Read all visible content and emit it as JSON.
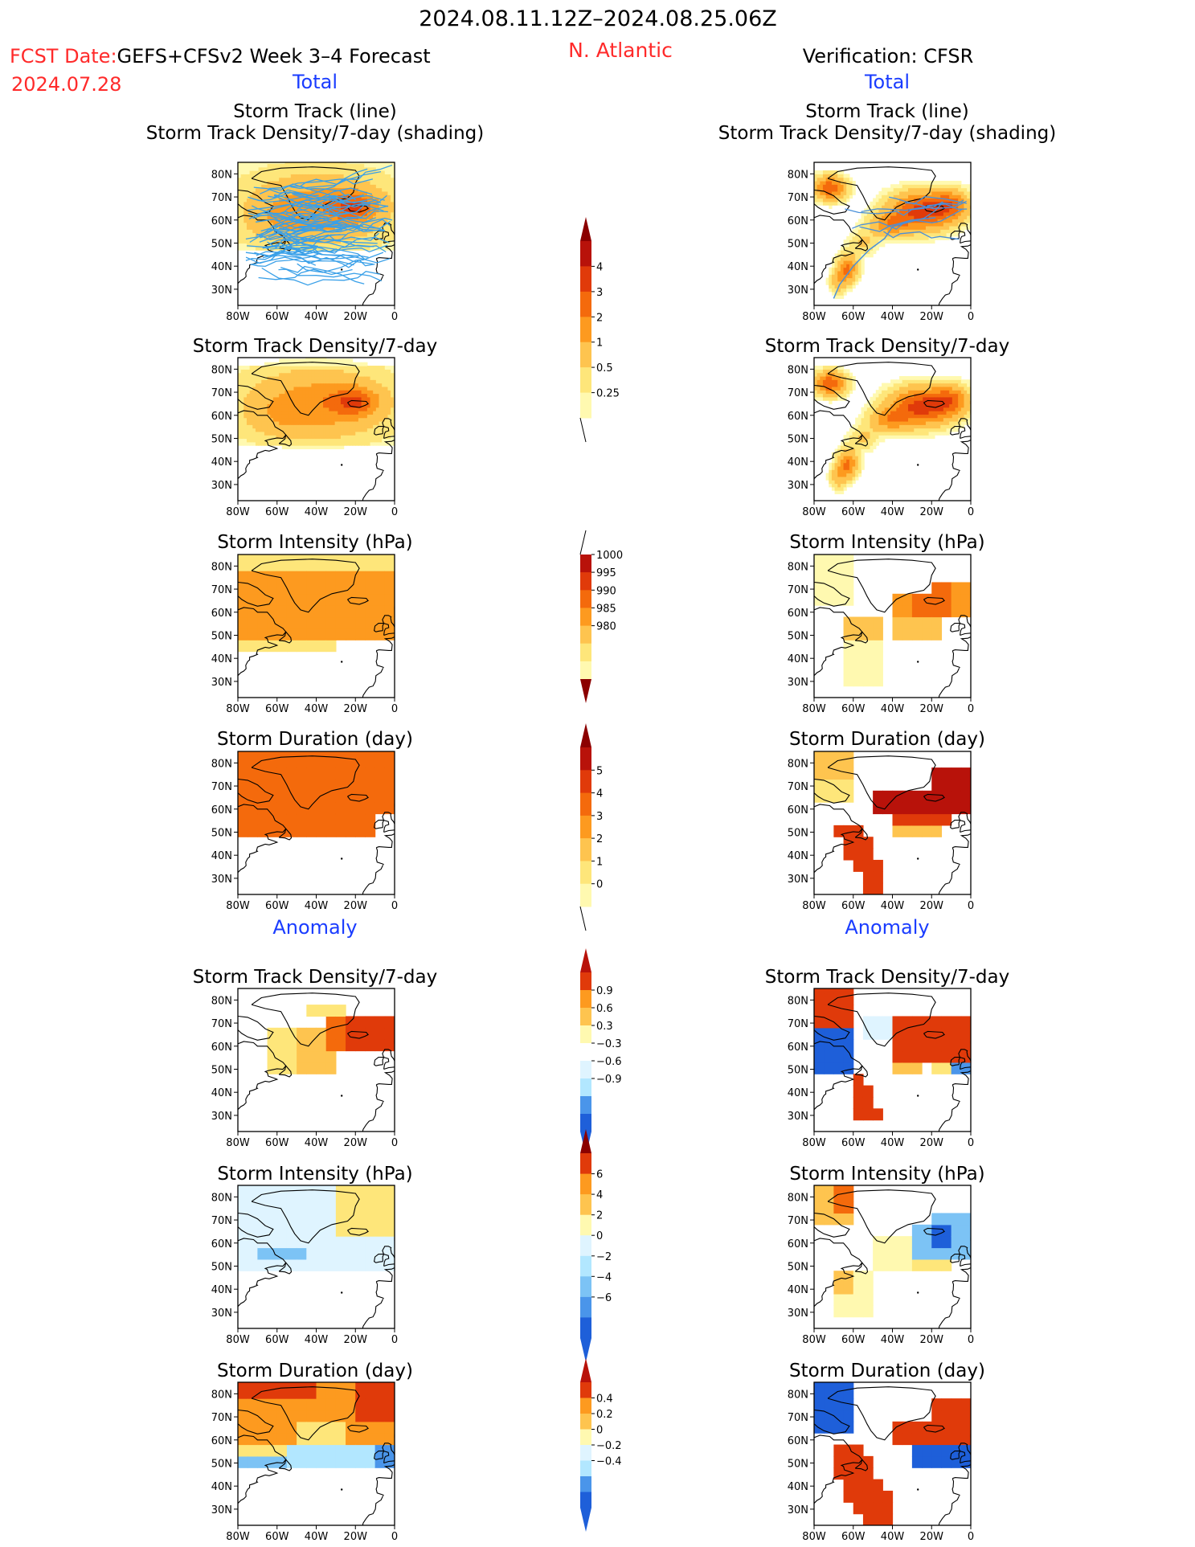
{
  "header": {
    "date_range": "2024.08.11.12Z–2024.08.25.06Z",
    "fcst_label": "FCST Date:",
    "fcst_model": "GEFS+CFSv2 Week 3–4 Forecast",
    "fcst_date": "2024.07.28",
    "region": "N. Atlantic",
    "verification": "Verification: CFSR",
    "total_left": "Total",
    "total_right": "Total",
    "anomaly_left": "Anomaly",
    "anomaly_right": "Anomaly"
  },
  "axes": {
    "x_ticks": [
      "80W",
      "60W",
      "40W",
      "20W",
      "0"
    ],
    "y_ticks": [
      "80N",
      "70N",
      "60N",
      "50N",
      "40N",
      "30N"
    ]
  },
  "colors": {
    "pos": [
      "#fff9b0",
      "#fee67a",
      "#fec44f",
      "#fd9a1f",
      "#f46a0c",
      "#e03a0a",
      "#b8120a",
      "#8b0000"
    ],
    "neg": [
      "#dff4ff",
      "#b2e7ff",
      "#7cc3f5",
      "#4a95ea",
      "#1e5fd9"
    ],
    "track_line": "#3aa0e8",
    "track_line_obs": "#4a90d9",
    "coast": "#000000"
  },
  "chart_data": [
    {
      "type": "heatmap",
      "panel": "forecast-total",
      "row": 1,
      "title": [
        "Storm Track (line)",
        "Storm Track Density/7-day (shading)"
      ]
    },
    {
      "type": "heatmap",
      "panel": "cfsr-total",
      "row": 1,
      "title": [
        "Storm Track (line)",
        "Storm Track Density/7-day (shading)"
      ]
    },
    {
      "type": "heatmap",
      "panel": "forecast-total",
      "row": 2,
      "title": [
        "Storm Track Density/7-day"
      ]
    },
    {
      "type": "heatmap",
      "panel": "cfsr-total",
      "row": 2,
      "title": [
        "Storm Track Density/7-day"
      ]
    },
    {
      "type": "heatmap",
      "panel": "forecast-total",
      "row": 3,
      "title": [
        "Storm Intensity (hPa)"
      ]
    },
    {
      "type": "heatmap",
      "panel": "cfsr-total",
      "row": 3,
      "title": [
        "Storm Intensity (hPa)"
      ]
    },
    {
      "type": "heatmap",
      "panel": "forecast-total",
      "row": 4,
      "title": [
        "Storm Duration (day)"
      ]
    },
    {
      "type": "heatmap",
      "panel": "cfsr-total",
      "row": 4,
      "title": [
        "Storm Duration (day)"
      ]
    },
    {
      "type": "heatmap",
      "panel": "forecast-anomaly",
      "row": 5,
      "title": [
        "Storm Track Density/7-day"
      ]
    },
    {
      "type": "heatmap",
      "panel": "cfsr-anomaly",
      "row": 5,
      "title": [
        "Storm Track Density/7-day"
      ]
    },
    {
      "type": "heatmap",
      "panel": "forecast-anomaly",
      "row": 6,
      "title": [
        "Storm Intensity (hPa)"
      ]
    },
    {
      "type": "heatmap",
      "panel": "cfsr-anomaly",
      "row": 6,
      "title": [
        "Storm Intensity (hPa)"
      ]
    },
    {
      "type": "heatmap",
      "panel": "forecast-anomaly",
      "row": 7,
      "title": [
        "Storm Duration (day)"
      ]
    },
    {
      "type": "heatmap",
      "panel": "cfsr-anomaly",
      "row": 7,
      "title": [
        "Storm Duration (day)"
      ]
    }
  ],
  "colorbars": [
    {
      "id": "density",
      "labels": [
        "4",
        "3",
        "2",
        "1",
        "0.5",
        "0.25"
      ]
    },
    {
      "id": "intensity",
      "labels": [
        "1000",
        "995",
        "990",
        "985",
        "980"
      ]
    },
    {
      "id": "duration",
      "labels": [
        "5",
        "4",
        "3",
        "2",
        "1",
        "0"
      ]
    },
    {
      "id": "density-anom",
      "labels": [
        "0.9",
        "0.6",
        "0.3",
        "−0.3",
        "−0.6",
        "−0.9"
      ]
    },
    {
      "id": "intensity-anom",
      "labels": [
        "6",
        "4",
        "2",
        "0",
        "−2",
        "−4",
        "−6"
      ]
    },
    {
      "id": "duration-anom",
      "labels": [
        "0.4",
        "0.2",
        "0",
        "−0.2",
        "−0.4"
      ]
    }
  ]
}
